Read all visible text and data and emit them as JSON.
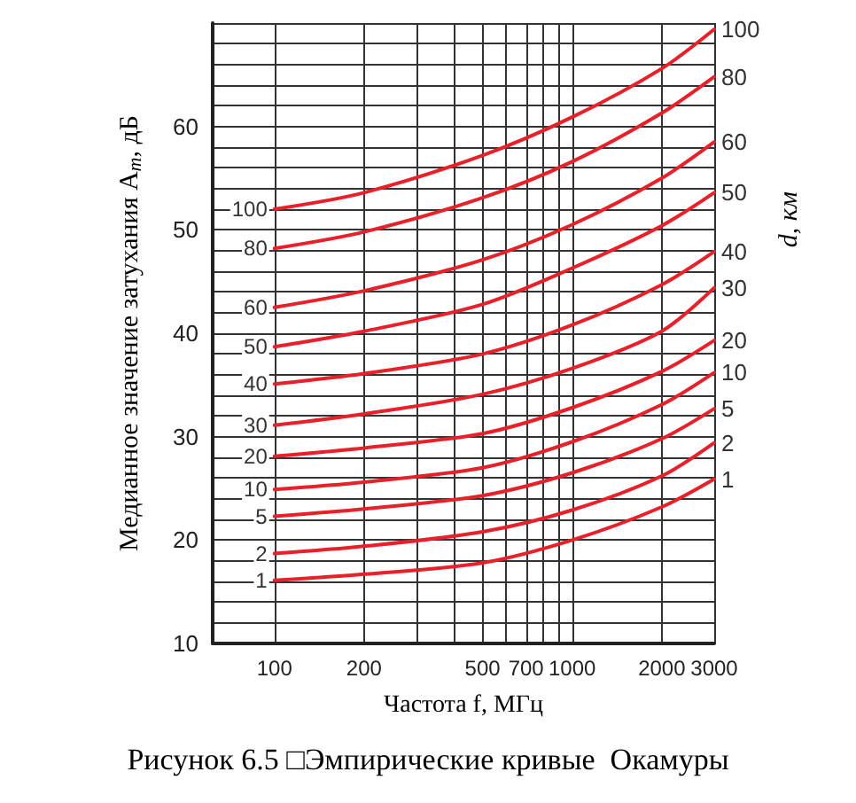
{
  "chart_data": {
    "type": "line",
    "xlabel": "Частота f, МГц",
    "ylabel": "Медианное значение затухания A$_{m}$, дБ",
    "y2label": "d, км",
    "annotations": [
      "Рисунок 6.5 □Эмпирические кривые  Окамуры"
    ],
    "x": [
      100,
      200,
      500,
      1000,
      2000,
      3000
    ],
    "log": "x",
    "xlim": [
      62,
      3000
    ],
    "xticks": [
      100,
      200,
      {
        "value": 300,
        "label": null
      },
      {
        "value": 400,
        "label": null
      },
      500,
      {
        "value": 600,
        "label": null
      },
      700,
      {
        "value": 800,
        "label": null
      },
      {
        "value": 900,
        "label": null
      },
      1000,
      2000,
      3000
    ],
    "ylim": [
      10,
      70
    ],
    "yticks": [
      10,
      {
        "value": 12,
        "label": null
      },
      {
        "value": 14,
        "label": null
      },
      {
        "value": 16,
        "label": null
      },
      {
        "value": 18,
        "label": null
      },
      20,
      {
        "value": 22,
        "label": null
      },
      {
        "value": 24,
        "label": null
      },
      {
        "value": 26,
        "label": null
      },
      {
        "value": 28,
        "label": null
      },
      30,
      {
        "value": 32,
        "label": null
      },
      {
        "value": 34,
        "label": null
      },
      {
        "value": 36,
        "label": null
      },
      {
        "value": 38,
        "label": null
      },
      40,
      {
        "value": 42,
        "label": null
      },
      {
        "value": 44,
        "label": null
      },
      {
        "value": 46,
        "label": null
      },
      {
        "value": 48,
        "label": null
      },
      50,
      {
        "value": 52,
        "label": null
      },
      {
        "value": 54,
        "label": null
      },
      {
        "value": 56,
        "label": null
      },
      {
        "value": 58,
        "label": null
      },
      60,
      {
        "value": 62,
        "label": null
      },
      {
        "value": 64,
        "label": null
      },
      {
        "value": 66,
        "label": null
      },
      {
        "value": 68,
        "label": null
      },
      {
        "value": 70,
        "label": null
      }
    ],
    "grid": true,
    "legend": false,
    "marker": "none",
    "line_style": "solid",
    "series": [
      {
        "name": "100",
        "color": "#e8202a",
        "values": [
          52.0,
          53.6,
          57.2,
          60.9,
          65.6,
          69.4
        ]
      },
      {
        "name": "80",
        "color": "#e8202a",
        "values": [
          48.2,
          49.8,
          53.1,
          56.6,
          61.3,
          64.8
        ]
      },
      {
        "name": "60",
        "color": "#e8202a",
        "values": [
          42.5,
          44.1,
          47.1,
          50.5,
          55.0,
          58.5
        ]
      },
      {
        "name": "50",
        "color": "#e8202a",
        "values": [
          38.7,
          40.2,
          42.8,
          46.3,
          50.4,
          53.6
        ]
      },
      {
        "name": "40",
        "color": "#e8202a",
        "values": [
          35.1,
          36.1,
          38.0,
          40.8,
          44.7,
          47.9
        ]
      },
      {
        "name": "30",
        "color": "#e8202a",
        "values": [
          31.1,
          32.2,
          34.1,
          36.6,
          40.2,
          44.4
        ]
      },
      {
        "name": "20",
        "color": "#e8202a",
        "values": [
          28.1,
          28.9,
          30.3,
          32.8,
          36.3,
          39.3
        ]
      },
      {
        "name": "10",
        "color": "#e8202a",
        "values": [
          24.9,
          25.6,
          27.0,
          29.5,
          33.1,
          36.2
        ]
      },
      {
        "name": "5",
        "color": "#e8202a",
        "values": [
          22.3,
          23.0,
          24.3,
          26.5,
          29.8,
          32.7
        ]
      },
      {
        "name": "2",
        "color": "#e8202a",
        "values": [
          18.7,
          19.4,
          20.8,
          22.9,
          26.2,
          29.4
        ]
      },
      {
        "name": "1",
        "color": "#e8202a",
        "values": [
          16.1,
          16.7,
          17.8,
          20.0,
          23.2,
          25.9
        ]
      }
    ]
  }
}
